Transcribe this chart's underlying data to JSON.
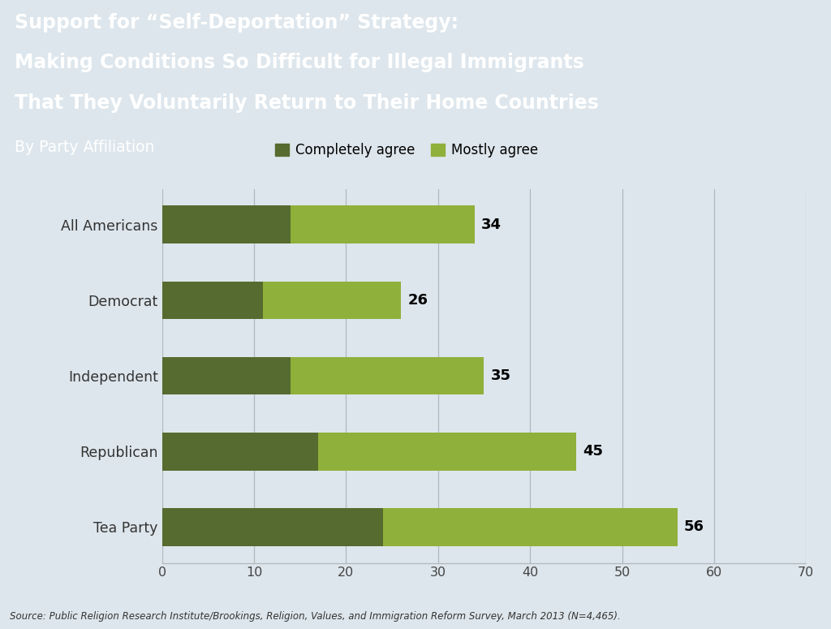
{
  "categories": [
    "All Americans",
    "Democrat",
    "Independent",
    "Republican",
    "Tea Party"
  ],
  "completely_agree": [
    14,
    11,
    14,
    17,
    24
  ],
  "mostly_agree": [
    20,
    15,
    21,
    28,
    32
  ],
  "totals": [
    34,
    26,
    35,
    45,
    56
  ],
  "color_completely": "#556B2F",
  "color_mostly": "#8FB03A",
  "header_bg": "#2E8B8A",
  "chart_bg": "#DDE6EC",
  "title_line1": "Support for “Self-Deportation” Strategy:",
  "title_line2": "Making Conditions So Difficult for Illegal Immigrants",
  "title_line3": "That They Voluntarily Return to Their Home Countries",
  "title_line4": "By Party Affiliation",
  "source_text": "Source: Public Religion Research Institute/Brookings, Religion, Values, and Immigration Reform Survey, March 2013 (N=4,465).",
  "xlim": [
    0,
    70
  ],
  "xticks": [
    0,
    10,
    20,
    30,
    40,
    50,
    60,
    70
  ],
  "legend_completely": "Completely agree",
  "legend_mostly": "Mostly agree",
  "bar_height": 0.5
}
